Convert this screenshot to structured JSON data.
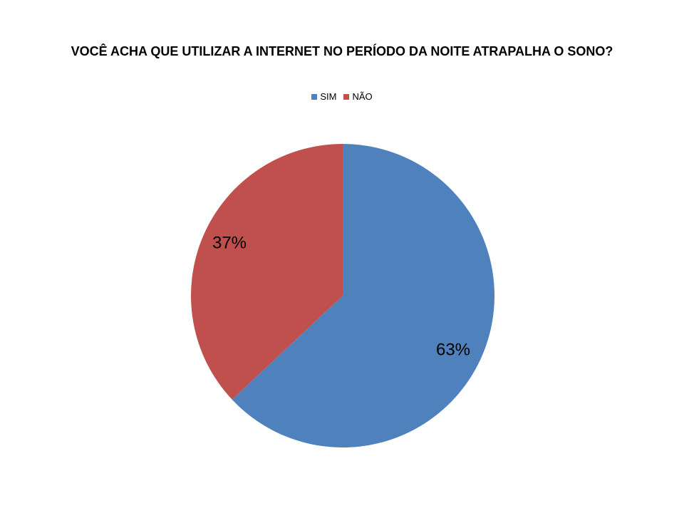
{
  "chart_data": {
    "type": "pie",
    "title": "VOCÊ ACHA QUE UTILIZAR A INTERNET NO PERÍODO DA NOITE ATRAPALHA O SONO?",
    "categories": [
      "SIM",
      "NÃO"
    ],
    "values": [
      63,
      37
    ],
    "data_labels": [
      "63%",
      "37%"
    ],
    "colors": [
      "#4F81BD",
      "#C0504D"
    ],
    "legend": {
      "placement": "top",
      "entries": [
        "SIM",
        "NÃO"
      ]
    }
  }
}
